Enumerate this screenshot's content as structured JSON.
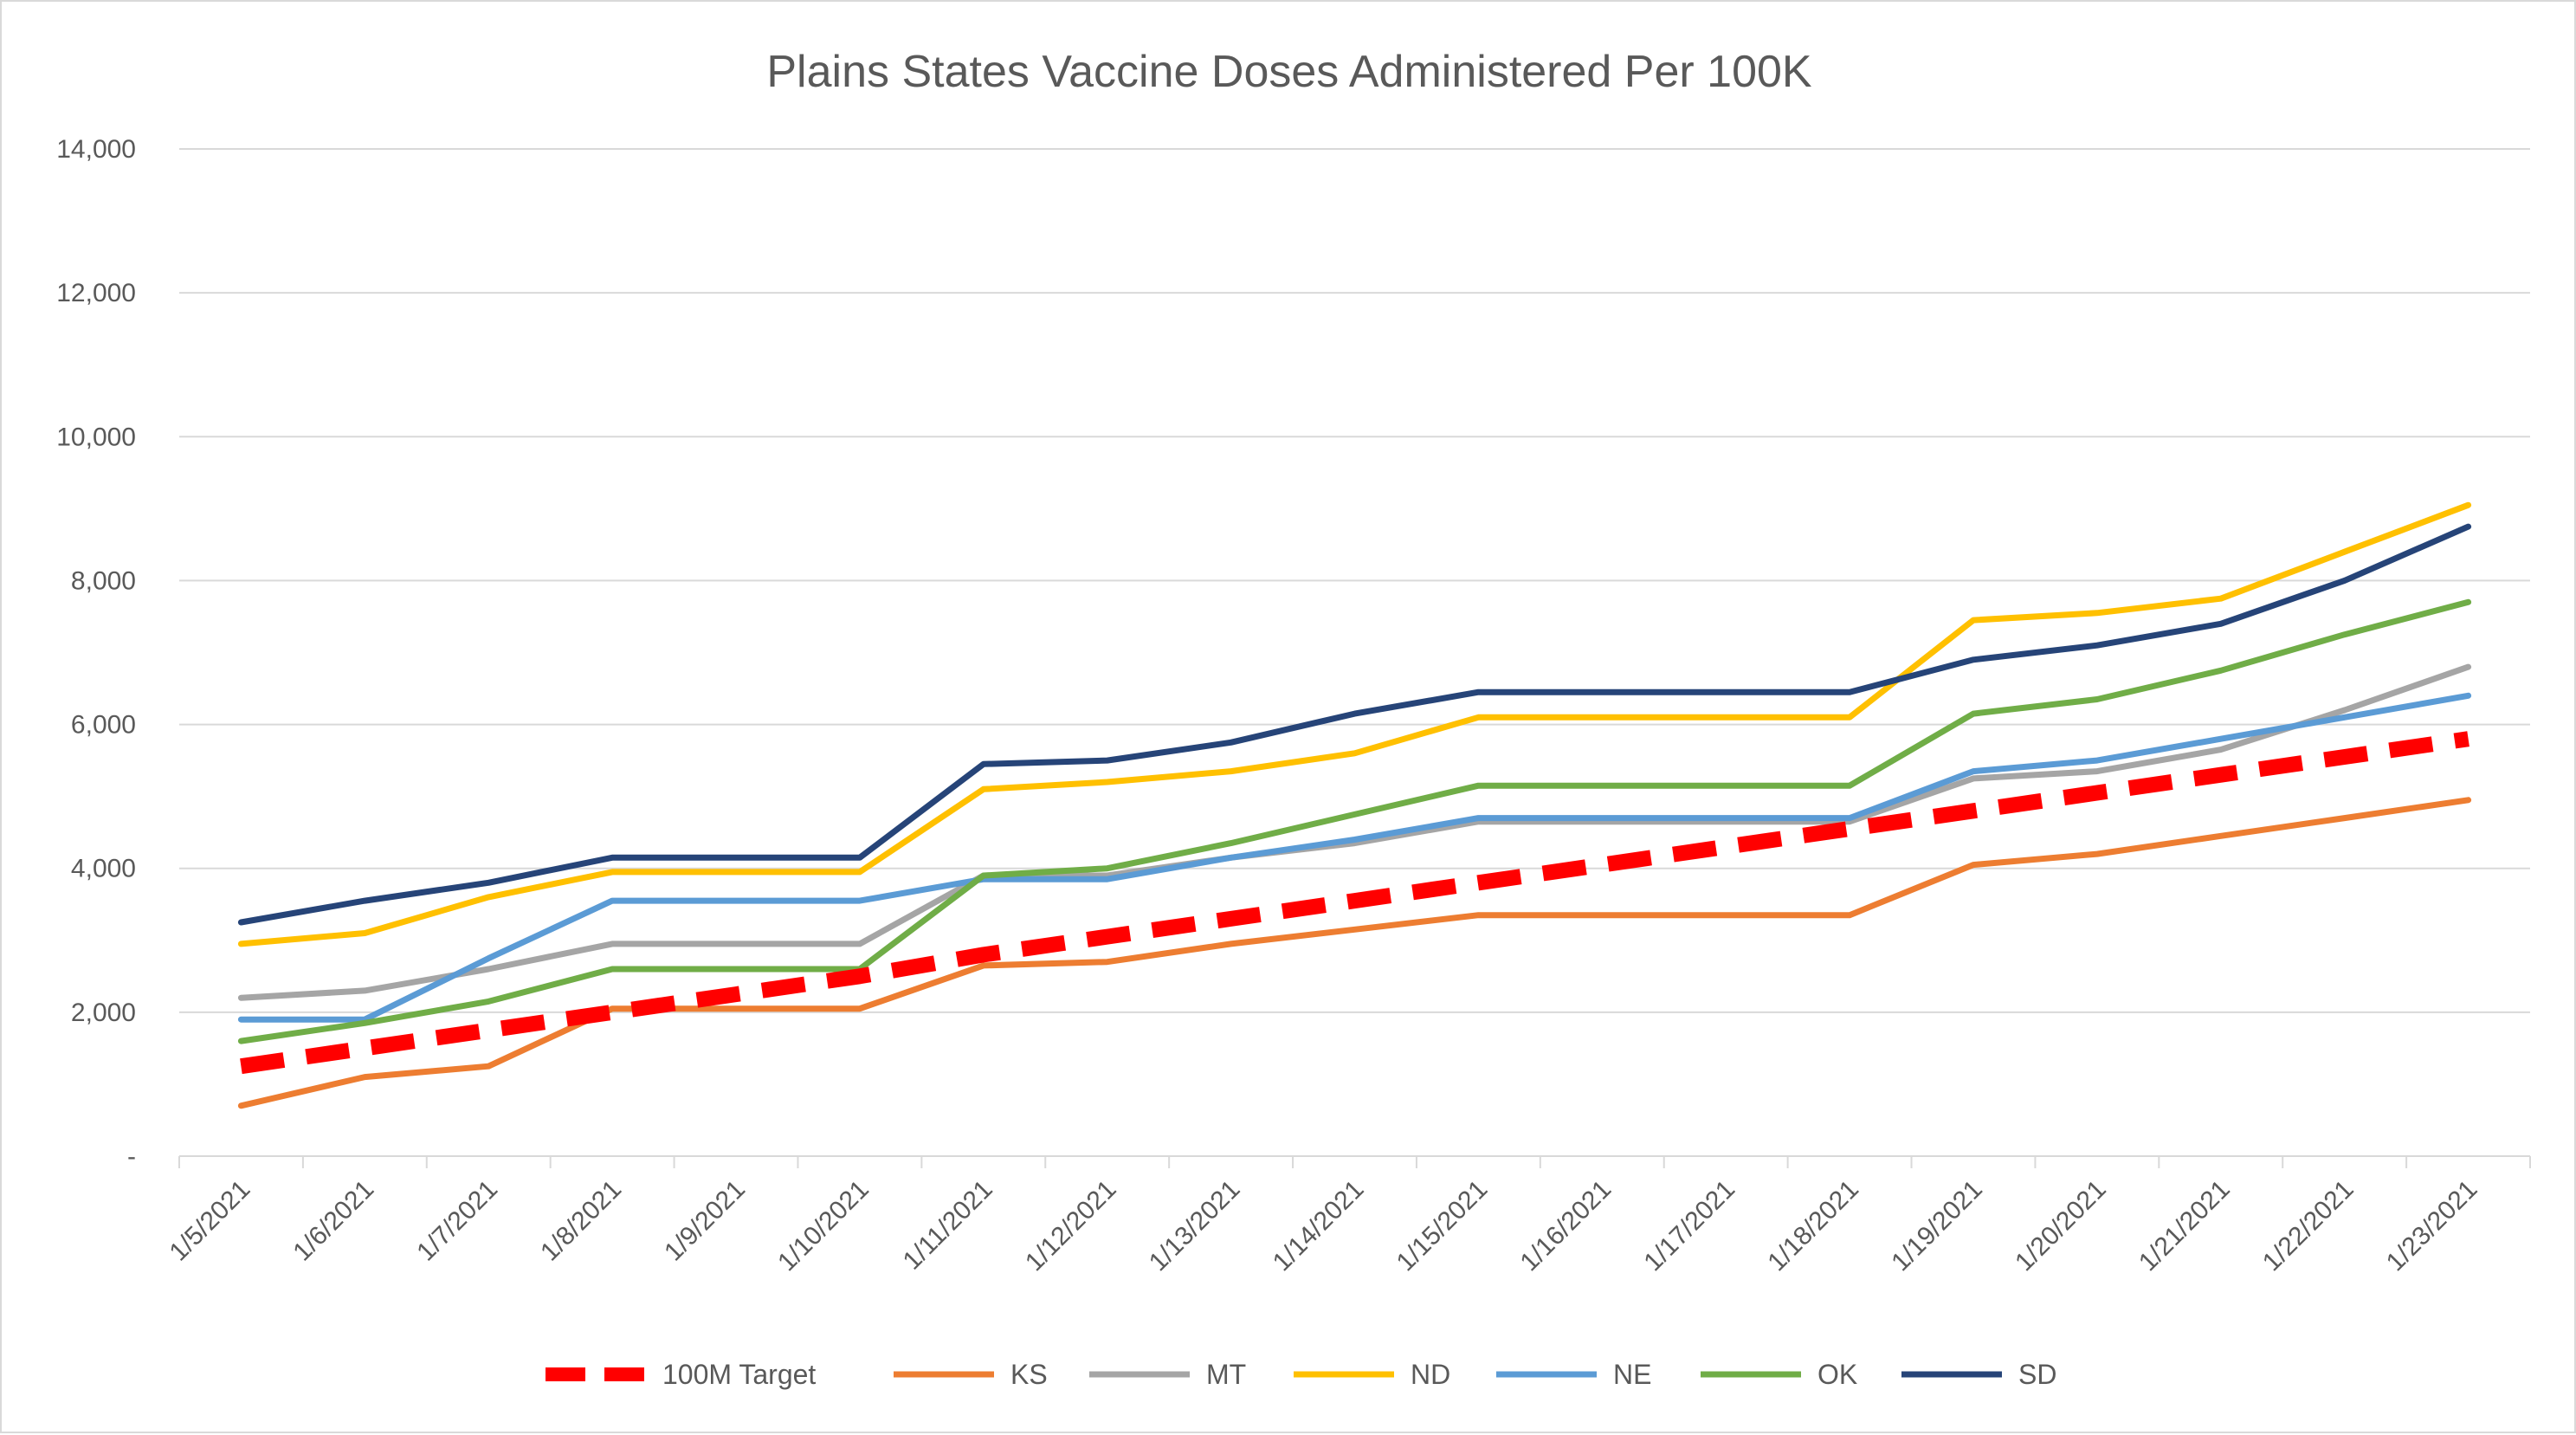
{
  "chart_data": {
    "type": "line",
    "title": "Plains States Vaccine Doses Administered Per 100K",
    "xlabel": "",
    "ylabel": "",
    "ylim": [
      0,
      14000
    ],
    "yticks": [
      0,
      2000,
      4000,
      6000,
      8000,
      10000,
      12000,
      14000
    ],
    "ytick_labels": [
      "-",
      "2,000",
      "4,000",
      "6,000",
      "8,000",
      "10,000",
      "12,000",
      "14,000"
    ],
    "categories": [
      "1/5/2021",
      "1/6/2021",
      "1/7/2021",
      "1/8/2021",
      "1/9/2021",
      "1/10/2021",
      "1/11/2021",
      "1/12/2021",
      "1/13/2021",
      "1/14/2021",
      "1/15/2021",
      "1/16/2021",
      "1/17/2021",
      "1/18/2021",
      "1/19/2021",
      "1/20/2021",
      "1/21/2021",
      "1/22/2021",
      "1/23/2021"
    ],
    "grid": true,
    "legend_position": "bottom",
    "series": [
      {
        "name": "100M Target",
        "color": "#ff0000",
        "dashed": true,
        "values": [
          1250,
          1500,
          1750,
          2000,
          2250,
          2500,
          2800,
          3050,
          3300,
          3550,
          3800,
          4050,
          4300,
          4550,
          4800,
          5050,
          5300,
          5550,
          5800
        ]
      },
      {
        "name": "KS",
        "color": "#ed7d31",
        "dashed": false,
        "values": [
          700,
          1100,
          1250,
          2050,
          2050,
          2050,
          2650,
          2700,
          2950,
          3150,
          3350,
          3350,
          3350,
          3350,
          4050,
          4200,
          4450,
          4700,
          4950
        ]
      },
      {
        "name": "MT",
        "color": "#a5a5a5",
        "dashed": false,
        "values": [
          2200,
          2300,
          2600,
          2950,
          2950,
          2950,
          3900,
          3900,
          4150,
          4350,
          4650,
          4650,
          4650,
          4650,
          5250,
          5350,
          5650,
          6200,
          6800
        ]
      },
      {
        "name": "ND",
        "color": "#ffc000",
        "dashed": false,
        "values": [
          2950,
          3100,
          3600,
          3950,
          3950,
          3950,
          5100,
          5200,
          5350,
          5600,
          6100,
          6100,
          6100,
          6100,
          7450,
          7550,
          7750,
          8400,
          9050
        ]
      },
      {
        "name": "NE",
        "color": "#5b9bd5",
        "dashed": false,
        "values": [
          1900,
          1900,
          2750,
          3550,
          3550,
          3550,
          3850,
          3850,
          4150,
          4400,
          4700,
          4700,
          4700,
          4700,
          5350,
          5500,
          5800,
          6100,
          6400
        ]
      },
      {
        "name": "OK",
        "color": "#70ad47",
        "dashed": false,
        "values": [
          1600,
          1850,
          2150,
          2600,
          2600,
          2600,
          3900,
          4000,
          4350,
          4750,
          5150,
          5150,
          5150,
          5150,
          6150,
          6350,
          6750,
          7250,
          7700
        ]
      },
      {
        "name": "SD",
        "color": "#264478",
        "dashed": false,
        "values": [
          3250,
          3550,
          3800,
          4150,
          4150,
          4150,
          5450,
          5500,
          5750,
          6150,
          6450,
          6450,
          6450,
          6450,
          6900,
          7100,
          7400,
          8000,
          8750
        ]
      }
    ]
  }
}
